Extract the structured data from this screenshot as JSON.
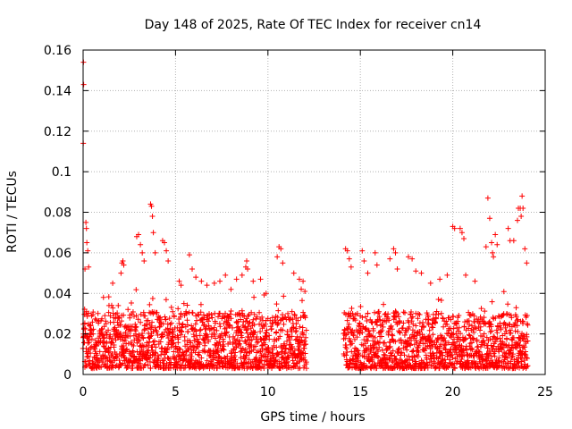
{
  "chart_data": {
    "type": "scatter",
    "title": "Day 148 of 2025, Rate Of TEC Index for receiver cn14",
    "xlabel": "GPS time / hours",
    "ylabel": "ROTI / TECUs",
    "xlim": [
      0,
      25
    ],
    "ylim": [
      0,
      0.16
    ],
    "x_ticks": [
      0,
      5,
      10,
      15,
      20,
      25
    ],
    "y_ticks": [
      0,
      0.02,
      0.04,
      0.06,
      0.08,
      0.1,
      0.12,
      0.14,
      0.16
    ],
    "x_tick_labels": [
      "0",
      "5",
      "10",
      "15",
      "20",
      "25"
    ],
    "y_tick_labels": [
      "0",
      "0.02",
      "0.04",
      "0.06",
      "0.08",
      "0.1",
      "0.12",
      "0.14",
      "0.16"
    ],
    "grid": true,
    "marker": "+",
    "marker_color": "#ff0000",
    "data_gap_hours": [
      12.1,
      14.1
    ],
    "series": [
      {
        "name": "ROTI",
        "points": [
          [
            0.02,
            0.154
          ],
          [
            0.03,
            0.143
          ],
          [
            0.01,
            0.114
          ],
          [
            0.1,
            0.052
          ],
          [
            0.15,
            0.075
          ],
          [
            0.18,
            0.072
          ],
          [
            0.2,
            0.065
          ],
          [
            0.25,
            0.061
          ],
          [
            0.3,
            0.053
          ],
          [
            1.1,
            0.038
          ],
          [
            1.4,
            0.034
          ],
          [
            1.6,
            0.045
          ],
          [
            1.9,
            0.034
          ],
          [
            2.05,
            0.05
          ],
          [
            2.1,
            0.055
          ],
          [
            2.15,
            0.056
          ],
          [
            2.2,
            0.054
          ],
          [
            2.9,
            0.068
          ],
          [
            3.0,
            0.069
          ],
          [
            3.1,
            0.064
          ],
          [
            3.2,
            0.06
          ],
          [
            3.3,
            0.056
          ],
          [
            3.65,
            0.084
          ],
          [
            3.7,
            0.083
          ],
          [
            3.75,
            0.078
          ],
          [
            3.8,
            0.07
          ],
          [
            3.9,
            0.06
          ],
          [
            4.3,
            0.066
          ],
          [
            4.4,
            0.065
          ],
          [
            4.5,
            0.061
          ],
          [
            4.6,
            0.056
          ],
          [
            5.2,
            0.046
          ],
          [
            5.3,
            0.044
          ],
          [
            5.75,
            0.059
          ],
          [
            5.9,
            0.052
          ],
          [
            6.1,
            0.048
          ],
          [
            6.4,
            0.046
          ],
          [
            6.7,
            0.044
          ],
          [
            7.1,
            0.045
          ],
          [
            7.4,
            0.046
          ],
          [
            7.7,
            0.049
          ],
          [
            8.0,
            0.042
          ],
          [
            8.3,
            0.047
          ],
          [
            8.6,
            0.049
          ],
          [
            8.8,
            0.053
          ],
          [
            8.85,
            0.056
          ],
          [
            8.9,
            0.052
          ],
          [
            9.2,
            0.046
          ],
          [
            9.6,
            0.047
          ],
          [
            9.9,
            0.04
          ],
          [
            10.5,
            0.058
          ],
          [
            10.6,
            0.063
          ],
          [
            10.7,
            0.062
          ],
          [
            10.8,
            0.055
          ],
          [
            11.4,
            0.05
          ],
          [
            11.7,
            0.047
          ],
          [
            11.9,
            0.046
          ],
          [
            12.0,
            0.041
          ],
          [
            14.2,
            0.062
          ],
          [
            14.3,
            0.061
          ],
          [
            14.4,
            0.057
          ],
          [
            14.5,
            0.053
          ],
          [
            15.1,
            0.061
          ],
          [
            15.2,
            0.056
          ],
          [
            15.4,
            0.05
          ],
          [
            15.8,
            0.06
          ],
          [
            15.9,
            0.054
          ],
          [
            16.6,
            0.057
          ],
          [
            16.8,
            0.062
          ],
          [
            16.9,
            0.06
          ],
          [
            17.0,
            0.052
          ],
          [
            17.6,
            0.058
          ],
          [
            17.8,
            0.057
          ],
          [
            18.0,
            0.051
          ],
          [
            18.3,
            0.05
          ],
          [
            18.8,
            0.045
          ],
          [
            19.3,
            0.047
          ],
          [
            19.7,
            0.049
          ],
          [
            20.0,
            0.073
          ],
          [
            20.1,
            0.072
          ],
          [
            20.4,
            0.072
          ],
          [
            20.5,
            0.07
          ],
          [
            20.6,
            0.067
          ],
          [
            20.7,
            0.049
          ],
          [
            21.2,
            0.046
          ],
          [
            21.8,
            0.063
          ],
          [
            21.9,
            0.087
          ],
          [
            22.0,
            0.077
          ],
          [
            22.1,
            0.065
          ],
          [
            22.15,
            0.06
          ],
          [
            22.2,
            0.058
          ],
          [
            22.3,
            0.069
          ],
          [
            22.4,
            0.064
          ],
          [
            23.0,
            0.072
          ],
          [
            23.1,
            0.066
          ],
          [
            23.3,
            0.066
          ],
          [
            23.5,
            0.076
          ],
          [
            23.55,
            0.082
          ],
          [
            23.65,
            0.082
          ],
          [
            23.7,
            0.078
          ],
          [
            23.75,
            0.088
          ],
          [
            23.8,
            0.082
          ],
          [
            23.9,
            0.062
          ],
          [
            24.0,
            0.055
          ]
        ]
      }
    ]
  }
}
